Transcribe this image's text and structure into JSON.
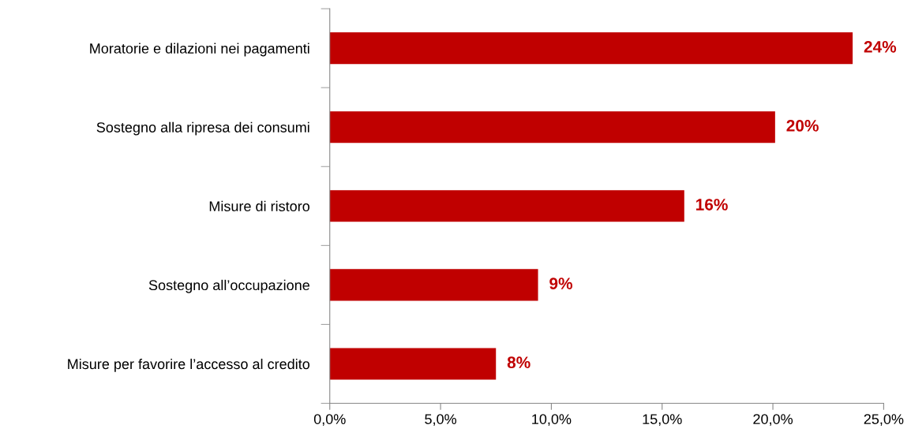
{
  "chart_data": {
    "type": "bar",
    "orientation": "horizontal",
    "categories": [
      "Moratorie e dilazioni nei pagamenti",
      "Sostegno alla ripresa dei consumi",
      "Misure di ristoro",
      "Sostegno all’occupazione",
      "Misure per favorire l’accesso al credito"
    ],
    "values": [
      23.6,
      20.1,
      16.0,
      9.4,
      7.5
    ],
    "value_labels": [
      "24%",
      "20%",
      "16%",
      "9%",
      "8%"
    ],
    "color": "#c00000",
    "xlim": [
      0,
      25
    ],
    "xticks": [
      {
        "value": 0,
        "label": "0,0%"
      },
      {
        "value": 5,
        "label": "5,0%"
      },
      {
        "value": 10,
        "label": "10,0%"
      },
      {
        "value": 15,
        "label": "15,0%"
      },
      {
        "value": 20,
        "label": "20,0%"
      },
      {
        "value": 25,
        "label": "25,0%"
      }
    ],
    "grid": false,
    "legend": false
  }
}
